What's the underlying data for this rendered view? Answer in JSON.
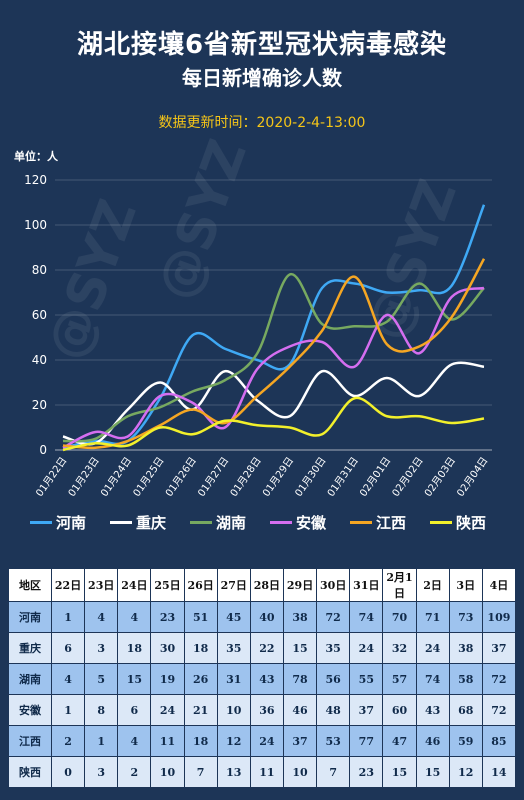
{
  "title": "湖北接壤6省新型冠状病毒感染",
  "subtitle": "每日新增确诊人数",
  "updated": "数据更新时间：2020-2-4-13:00",
  "unit_label": "单位：人",
  "watermark": "@SYZ",
  "colors": {
    "background": "#1d3557",
    "河南": "#3fa9f5",
    "重庆": "#ffffff",
    "湖南": "#77a960",
    "安徽": "#d56ef0",
    "江西": "#f5a623",
    "陕西": "#f2f02b"
  },
  "chart_data": {
    "type": "line",
    "categories": [
      "01月22日",
      "01月23日",
      "01月24日",
      "01月25日",
      "01月26日",
      "01月27日",
      "01月28日",
      "01月29日",
      "01月30日",
      "01月31日",
      "02月01日",
      "02月02日",
      "02月03日",
      "02月04日"
    ],
    "ylim": [
      0,
      120
    ],
    "yticks": [
      0,
      20,
      40,
      60,
      80,
      100,
      120
    ],
    "ylabel": "单位：人",
    "grid": true,
    "legend_position": "bottom",
    "series": [
      {
        "name": "河南",
        "values": [
          1,
          4,
          4,
          23,
          51,
          45,
          40,
          38,
          72,
          74,
          70,
          71,
          73,
          109
        ]
      },
      {
        "name": "重庆",
        "values": [
          6,
          3,
          18,
          30,
          18,
          35,
          22,
          15,
          35,
          24,
          32,
          24,
          38,
          37
        ]
      },
      {
        "name": "湖南",
        "values": [
          4,
          5,
          15,
          19,
          26,
          31,
          43,
          78,
          56,
          55,
          57,
          74,
          58,
          72
        ]
      },
      {
        "name": "安徽",
        "values": [
          1,
          8,
          6,
          24,
          21,
          10,
          36,
          46,
          48,
          37,
          60,
          43,
          68,
          72
        ]
      },
      {
        "name": "江西",
        "values": [
          2,
          1,
          4,
          11,
          18,
          12,
          24,
          37,
          53,
          77,
          47,
          46,
          59,
          85
        ]
      },
      {
        "name": "陕西",
        "values": [
          0,
          3,
          2,
          10,
          7,
          13,
          11,
          10,
          7,
          23,
          15,
          15,
          12,
          14
        ]
      }
    ]
  },
  "table": {
    "header": [
      "地区",
      "22日",
      "23日",
      "24日",
      "25日",
      "26日",
      "27日",
      "28日",
      "29日",
      "30日",
      "31日",
      "2月1日",
      "2日",
      "3日",
      "4日"
    ],
    "rows": [
      [
        "河南",
        "1",
        "4",
        "4",
        "23",
        "51",
        "45",
        "40",
        "38",
        "72",
        "74",
        "70",
        "71",
        "73",
        "109"
      ],
      [
        "重庆",
        "6",
        "3",
        "18",
        "30",
        "18",
        "35",
        "22",
        "15",
        "35",
        "24",
        "32",
        "24",
        "38",
        "37"
      ],
      [
        "湖南",
        "4",
        "5",
        "15",
        "19",
        "26",
        "31",
        "43",
        "78",
        "56",
        "55",
        "57",
        "74",
        "58",
        "72"
      ],
      [
        "安徽",
        "1",
        "8",
        "6",
        "24",
        "21",
        "10",
        "36",
        "46",
        "48",
        "37",
        "60",
        "43",
        "68",
        "72"
      ],
      [
        "江西",
        "2",
        "1",
        "4",
        "11",
        "18",
        "12",
        "24",
        "37",
        "53",
        "77",
        "47",
        "46",
        "59",
        "85"
      ],
      [
        "陕西",
        "0",
        "3",
        "2",
        "10",
        "7",
        "13",
        "11",
        "10",
        "7",
        "23",
        "15",
        "15",
        "12",
        "14"
      ]
    ]
  }
}
